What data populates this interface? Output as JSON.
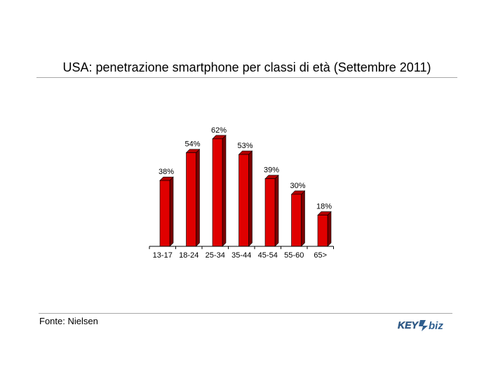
{
  "header": {
    "title": "USA: penetrazione smartphone per classi di età (Settembre 2011)"
  },
  "footer": {
    "source": "Fonte: Nielsen",
    "logo_text_key": "KEY",
    "logo_text_biz": "biz"
  },
  "colors": {
    "bar_front": "#e00000",
    "bar_side": "#7a0000",
    "bar_top": "#b40000",
    "logo": "#2f5f8f"
  },
  "chart_data": {
    "type": "bar",
    "title": "USA: penetrazione smartphone per classi di età (Settembre 2011)",
    "categories": [
      "13-17",
      "18-24",
      "25-34",
      "35-44",
      "45-54",
      "55-60",
      "65>"
    ],
    "values": [
      38,
      54,
      62,
      53,
      39,
      30,
      18
    ],
    "data_labels": [
      "38%",
      "54%",
      "62%",
      "53%",
      "39%",
      "30%",
      "18%"
    ],
    "ylim": [
      0,
      70
    ],
    "grid": false,
    "legend": "none",
    "xlabel": "",
    "ylabel": ""
  }
}
